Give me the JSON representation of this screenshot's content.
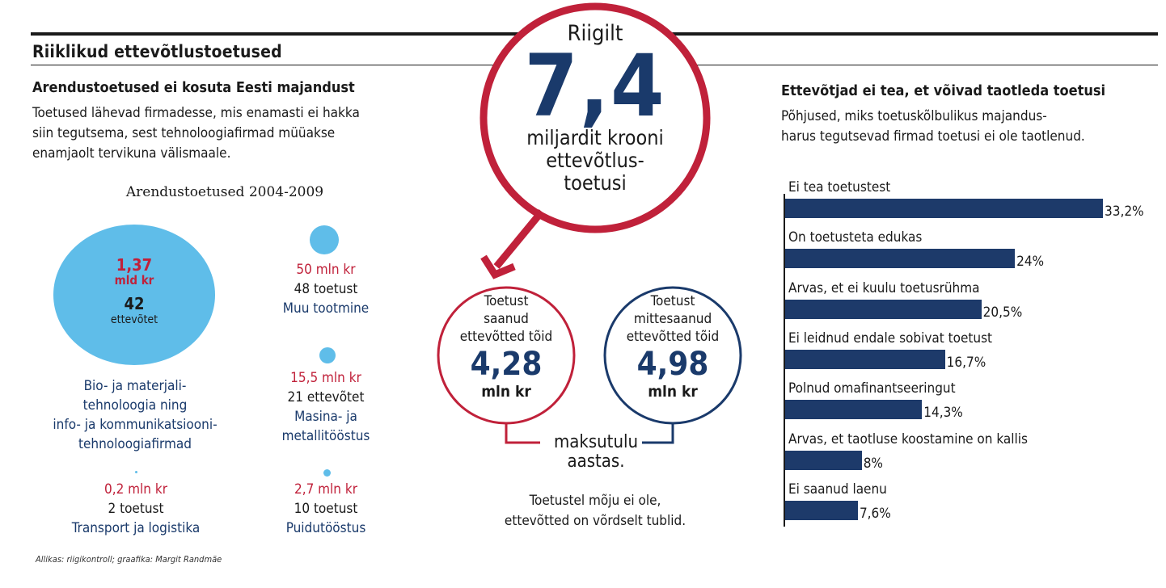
{
  "header": {
    "title": "Riiklikud ettevõtlustoetused"
  },
  "left": {
    "heading": "Arendustoetused ei kosuta Eesti majandust",
    "body": [
      "Toetused lähevad firmadesse, mis enamasti ei hakka",
      "siin tegutsema, sest tehnoloogiafirmad müüakse",
      "enamjaolt tervikuna välismaale."
    ],
    "subtitle": "Arendustoetused 2004-2009",
    "big": {
      "amount": "1,37",
      "unit": "mld kr",
      "count": "42",
      "count_unit": "ettevõtet",
      "name": [
        "Bio- ja materjali-",
        "tehnoloogia ning",
        "info- ja kommunikatsiooni-",
        "tehnoloogiafirmad"
      ]
    },
    "muu": {
      "amount": "50 mln kr",
      "count": "48 toetust",
      "name": "Muu tootmine"
    },
    "masina": {
      "amount": "15,5 mln kr",
      "count": "21 ettevõtet",
      "name": [
        "Masina- ja",
        "metallitööstus"
      ]
    },
    "transport": {
      "amount": "0,2 mln kr",
      "count": "2 toetust",
      "name": "Transport ja logistika"
    },
    "puidu": {
      "amount": "2,7 mln kr",
      "count": "10 toetust",
      "name": "Puidutööstus"
    },
    "source": "Allikas: riigikontroll; graafika: Margit Randmäe"
  },
  "middle": {
    "top_label": "Riigilt",
    "big_number": "7,4",
    "big_text": [
      "miljardit krooni",
      "ettevõtlus-",
      "toetusi"
    ],
    "left_circle": {
      "text": [
        "Toetust",
        "saanud",
        "ettevõtted tõid"
      ],
      "value": "4,28",
      "unit": "mln kr"
    },
    "right_circle": {
      "text": [
        "Toetust",
        "mittesaanud",
        "ettevõtted tõid"
      ],
      "value": "4,98",
      "unit": "mln kr"
    },
    "bracket_text": [
      "maksutulu",
      "aastas."
    ],
    "footer": [
      "Toetustel mõju ei ole,",
      "ettevõtted on võrdselt tublid."
    ],
    "colors": {
      "red": "#c0213a",
      "navy": "#1a3a6b",
      "blue": "#5fbde9"
    }
  },
  "right": {
    "heading": "Ettevõtjad ei tea, et võivad taotleda toetusi",
    "body": [
      "Põhjused, miks toetuskõlbulikus majandus-",
      "harus tegutsevad firmad toetusi ei ole taotlenud."
    ]
  },
  "chart_data": {
    "type": "bar",
    "orientation": "horizontal",
    "categories": [
      "Ei tea toetustest",
      "On toetusteta edukas",
      "Arvas, et ei kuulu toetusrühma",
      "Ei leidnud endale sobivat toetust",
      "Polnud omafinantseeringut",
      "Arvas, et taotluse koostamine on kallis",
      "Ei saanud laenu"
    ],
    "values": [
      33.2,
      24,
      20.5,
      16.7,
      14.3,
      8,
      7.6
    ],
    "value_labels": [
      "33,2%",
      "24%",
      "20,5%",
      "16,7%",
      "14,3%",
      "8%",
      "7,6%"
    ],
    "unit": "%",
    "bar_color": "#1d3a6a"
  }
}
